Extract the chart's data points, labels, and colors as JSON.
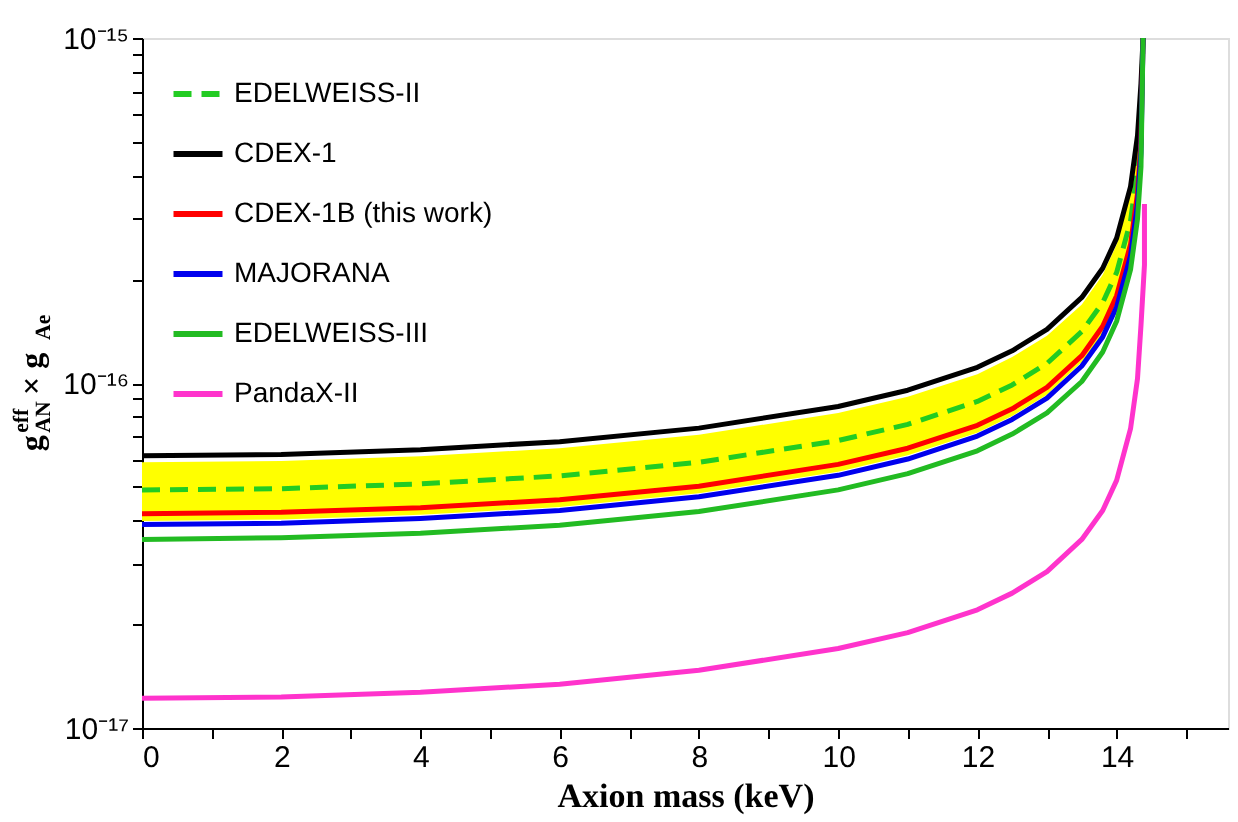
{
  "chart_data": {
    "type": "line",
    "xlabel": "Axion mass (keV)",
    "ylabel": "g$^{eff}$$_{AN}$ × g$_{Ae}$",
    "log": "y",
    "xlim": [
      0,
      15.6
    ],
    "ylim": [
      1e-17,
      1e-15
    ],
    "xticks": [
      0,
      {
        "value": 1,
        "label": null
      },
      2,
      {
        "value": 3,
        "label": null
      },
      4,
      {
        "value": 5,
        "label": null
      },
      6,
      {
        "value": 7,
        "label": null
      },
      8,
      {
        "value": 9,
        "label": null
      },
      10,
      {
        "value": 11,
        "label": null
      },
      12,
      {
        "value": 13,
        "label": null
      },
      14,
      {
        "value": 15,
        "label": null
      }
    ],
    "yticks": [
      {
        "value": 1e-17,
        "label": "10⁻¹⁷"
      },
      {
        "value": 2e-17,
        "label": null
      },
      {
        "value": 3e-17,
        "label": null
      },
      {
        "value": 4e-17,
        "label": null
      },
      {
        "value": 5e-17,
        "label": null
      },
      {
        "value": 6e-17,
        "label": null
      },
      {
        "value": 7e-17,
        "label": null
      },
      {
        "value": 8e-17,
        "label": null
      },
      {
        "value": 9e-17,
        "label": null
      },
      {
        "value": 1e-16,
        "label": "10⁻¹⁶"
      },
      {
        "value": 2e-16,
        "label": null
      },
      {
        "value": 3e-16,
        "label": null
      },
      {
        "value": 4e-16,
        "label": null
      },
      {
        "value": 5e-16,
        "label": null
      },
      {
        "value": 6e-16,
        "label": null
      },
      {
        "value": 7e-16,
        "label": null
      },
      {
        "value": 8e-16,
        "label": null
      },
      {
        "value": 9e-16,
        "label": null
      },
      {
        "value": 1e-15,
        "label": "10⁻¹⁵"
      }
    ],
    "grid": false,
    "legend": "top left",
    "marker": "none",
    "x": [
      0,
      2,
      4,
      6,
      8,
      10,
      11,
      12,
      12.5,
      13,
      13.5,
      13.8,
      14,
      14.2,
      14.3,
      14.35,
      14.38
    ],
    "series": [
      {
        "name": "EDELWEISS-II",
        "color": "#22cc22",
        "line_style": "dashed",
        "values": [
          4.9e-17,
          4.94e-17,
          5.1e-17,
          5.38e-17,
          5.89e-17,
          6.81e-17,
          7.59e-17,
          8.84e-17,
          9.87e-17,
          1.14e-16,
          1.41e-16,
          1.71e-16,
          2.09e-16,
          2.95e-16,
          4.15e-16,
          5.87e-16,
          1e-15
        ]
      },
      {
        "name": "CDEX-1",
        "color": "#000000",
        "values": [
          6.15e-17,
          6.21e-17,
          6.41e-17,
          6.76e-17,
          7.4e-17,
          8.55e-17,
          9.53e-17,
          1.11e-16,
          1.24e-16,
          1.43e-16,
          1.77e-16,
          2.15e-16,
          2.63e-16,
          3.71e-16,
          5.21e-16,
          7.38e-16,
          1e-15
        ]
      },
      {
        "name": "CDEX-1B (this work)",
        "color": "#ff0000",
        "values": [
          4.18e-17,
          4.22e-17,
          4.35e-17,
          4.59e-17,
          5.02e-17,
          5.81e-17,
          6.47e-17,
          7.54e-17,
          8.42e-17,
          9.71e-17,
          1.2e-16,
          1.46e-16,
          1.79e-16,
          2.52e-16,
          3.54e-16,
          5.01e-16,
          1e-15
        ],
        "lower": [
          3.98e-17,
          4.02e-17,
          4.15e-17,
          4.37e-17,
          4.79e-17,
          5.53e-17,
          6.17e-17,
          7.18e-17,
          8.02e-17,
          9.25e-17,
          1.15e-16,
          1.39e-16,
          1.7e-16,
          2.4e-16,
          3.37e-16,
          4.77e-16,
          6.5e-16
        ],
        "upper": [
          5.89e-17,
          5.94e-17,
          6.13e-17,
          6.47e-17,
          7.08e-17,
          8.18e-17,
          9.12e-17,
          1.06e-16,
          1.19e-16,
          1.37e-16,
          1.69e-16,
          2.06e-16,
          2.52e-16,
          3.55e-16,
          4.99e-16,
          7.06e-16,
          9.6e-16
        ]
      },
      {
        "name": "MAJORANA",
        "color": "#0000ee",
        "values": [
          3.89e-17,
          3.92e-17,
          4.05e-17,
          4.27e-17,
          4.68e-17,
          5.4e-17,
          6.02e-17,
          7.02e-17,
          7.84e-17,
          9.04e-17,
          1.12e-16,
          1.36e-16,
          1.66e-16,
          2.34e-16,
          3.29e-16,
          4.66e-16,
          1e-15
        ]
      },
      {
        "name": "EDELWEISS-III",
        "color": "#22bb22",
        "values": [
          3.52e-17,
          3.56e-17,
          3.67e-17,
          3.87e-17,
          4.24e-17,
          4.9e-17,
          5.46e-17,
          6.36e-17,
          7.11e-17,
          8.19e-17,
          1.01e-16,
          1.23e-16,
          1.51e-16,
          2.13e-16,
          2.99e-16,
          4.23e-16,
          1e-15
        ]
      },
      {
        "name": "PandaX-II",
        "color": "#ff33cc",
        "x": [
          0,
          2,
          4,
          6,
          8,
          10,
          11,
          12,
          12.5,
          13,
          13.5,
          13.8,
          14,
          14.2,
          14.3,
          14.35,
          14.4,
          14.4
        ],
        "values": [
          1.22e-17,
          1.23e-17,
          1.27e-17,
          1.34e-17,
          1.47e-17,
          1.7e-17,
          1.89e-17,
          2.2e-17,
          2.46e-17,
          2.84e-17,
          3.52e-17,
          4.27e-17,
          5.22e-17,
          7.37e-17,
          1.03e-16,
          1.47e-16,
          2.2e-16,
          3.3e-16
        ]
      }
    ]
  }
}
